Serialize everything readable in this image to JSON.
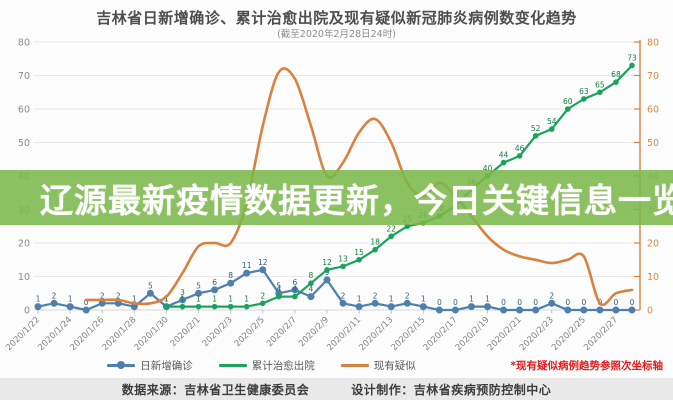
{
  "banner": {
    "text": "辽源最新疫情数据更新，今日关键信息一览",
    "bg_color": "#7bb84a",
    "text_color": "#ffffff"
  },
  "chart_data": {
    "type": "line",
    "title": "吉林省日新增确诊、累计治愈出院及现有疑似新冠肺炎病例数变化趋势",
    "subtitle": "(截至2020年2月28日24时)",
    "x": [
      "2020/1/22",
      "2020/1/23",
      "2020/1/24",
      "2020/1/25",
      "2020/1/26",
      "2020/1/27",
      "2020/1/28",
      "2020/1/29",
      "2020/1/30",
      "2020/1/31",
      "2020/2/1",
      "2020/2/2",
      "2020/2/3",
      "2020/2/4",
      "2020/2/5",
      "2020/2/6",
      "2020/2/7",
      "2020/2/8",
      "2020/2/9",
      "2020/2/10",
      "2020/2/11",
      "2020/2/12",
      "2020/2/13",
      "2020/2/14",
      "2020/2/15",
      "2020/2/16",
      "2020/2/17",
      "2020/2/18",
      "2020/2/19",
      "2020/2/20",
      "2020/2/21",
      "2020/2/22",
      "2020/2/23",
      "2020/2/24",
      "2020/2/25",
      "2020/2/26",
      "2020/2/27",
      "2020/2/28"
    ],
    "x_label_step": 2,
    "ylim": [
      0,
      80
    ],
    "y_ticks": [
      0,
      10,
      20,
      30,
      40,
      50,
      60,
      70,
      80
    ],
    "secondary_axis": true,
    "grid": true,
    "legend_position": "bottom",
    "series": [
      {
        "name": "日新增确诊",
        "axis": "left",
        "color": "#4e7fad",
        "label_color": "#2f5e8a",
        "marker": "circle",
        "smooth": false,
        "point_labels": true,
        "values": [
          1,
          2,
          1,
          0,
          2,
          2,
          1,
          5,
          1,
          3,
          5,
          6,
          8,
          11,
          12,
          5,
          6,
          4,
          9,
          2,
          1,
          2,
          1,
          2,
          1,
          0,
          0,
          1,
          1,
          0,
          0,
          0,
          2,
          0,
          0,
          0,
          0,
          0
        ]
      },
      {
        "name": "累计治愈出院",
        "axis": "left",
        "color": "#1aa35a",
        "label_color": "#128146",
        "marker": "circle",
        "smooth": false,
        "point_labels": true,
        "values": [
          null,
          null,
          null,
          null,
          null,
          null,
          null,
          null,
          1,
          1,
          1,
          1,
          1,
          1,
          2,
          4,
          4,
          8,
          12,
          13,
          15,
          18,
          22,
          25,
          26,
          28,
          31,
          36,
          40,
          44,
          46,
          52,
          54,
          60,
          63,
          65,
          68,
          73
        ]
      },
      {
        "name": "现有疑似",
        "axis": "right",
        "color": "#d9813e",
        "label_color": "#d9813e",
        "marker": "none",
        "smooth": true,
        "point_labels": false,
        "values": [
          null,
          null,
          null,
          3,
          3,
          3,
          2,
          2,
          4,
          11,
          19,
          20,
          20,
          32,
          55,
          71,
          69,
          55,
          40,
          44,
          53,
          57,
          50,
          38,
          34,
          38,
          34,
          28,
          22,
          18,
          16,
          15,
          14,
          15,
          16,
          2,
          5,
          6
        ]
      }
    ],
    "note": "*现有疑似病例趋势参照次坐标轴",
    "note_color": "#e01c1c",
    "axis_colors": {
      "left_labels": "#8a8a8a",
      "right_labels": "#d98a3f",
      "x_labels": "#7f7f7f"
    }
  },
  "footer": {
    "source": "数据来源：吉林省卫生健康委员会",
    "design": "设计制作：吉林省疾病预防控制中心"
  }
}
